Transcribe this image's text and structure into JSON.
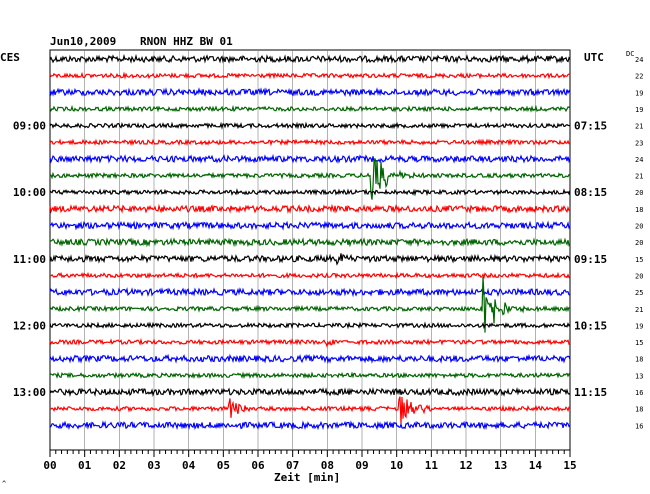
{
  "header": {
    "date": "Jun10,2009",
    "station": "RNON HHZ BW 01",
    "left_tz": "CES",
    "right_tz": "UTC",
    "dc_label": "DC"
  },
  "footer": {
    "xlabel": "Zeit [min]",
    "corner_mark": "^"
  },
  "colors": {
    "trace_cycle": [
      "#000000",
      "#ff0000",
      "#0000ff",
      "#006400"
    ],
    "grid": "#808080",
    "axis": "#000000"
  },
  "chart_data": {
    "type": "seismogram-helicorder",
    "title": "Jun10,2009  RNON HHZ BW 01",
    "xlabel": "Zeit [min]",
    "xlim": [
      0,
      15
    ],
    "x_ticks": [
      "00",
      "01",
      "02",
      "03",
      "04",
      "05",
      "06",
      "07",
      "08",
      "09",
      "10",
      "11",
      "12",
      "13",
      "14",
      "15"
    ],
    "minutes_per_line": 15,
    "line_count": 23,
    "left_time_labels": [
      {
        "line": 4,
        "label": "09:00"
      },
      {
        "line": 8,
        "label": "10:00"
      },
      {
        "line": 12,
        "label": "11:00"
      },
      {
        "line": 16,
        "label": "12:00"
      },
      {
        "line": 20,
        "label": "13:00"
      }
    ],
    "right_time_labels": [
      {
        "line": 4,
        "label": "07:15"
      },
      {
        "line": 8,
        "label": "08:15"
      },
      {
        "line": 12,
        "label": "09:15"
      },
      {
        "line": 16,
        "label": "10:15"
      },
      {
        "line": 20,
        "label": "11:15"
      }
    ],
    "dc_offsets": [
      "24",
      "22",
      "19",
      "19",
      "21",
      "23",
      "24",
      "21",
      "20",
      "18",
      "20",
      "20",
      "15",
      "20",
      "25",
      "21",
      "19",
      "15",
      "18",
      "13",
      "16",
      "18",
      "16"
    ],
    "noise_amplitude": [
      3,
      2,
      3,
      2,
      2,
      2,
      3,
      2,
      2,
      3,
      3,
      3,
      3,
      2,
      3,
      2,
      2,
      2,
      3,
      2,
      3,
      2,
      3
    ],
    "events": [
      {
        "line": 7,
        "minute": 9.3,
        "amplitude": 40,
        "decay_min": 0.3
      },
      {
        "line": 15,
        "minute": 12.5,
        "amplitude": 44,
        "decay_min": 0.3
      },
      {
        "line": 21,
        "minute": 5.2,
        "amplitude": 11,
        "decay_min": 0.35
      },
      {
        "line": 21,
        "minute": 10.1,
        "amplitude": 15,
        "decay_min": 0.35
      },
      {
        "line": 12,
        "minute": 8.3,
        "amplitude": 6,
        "decay_min": 0.2
      },
      {
        "line": 17,
        "minute": 8.0,
        "amplitude": 4,
        "decay_min": 0.2
      }
    ]
  }
}
